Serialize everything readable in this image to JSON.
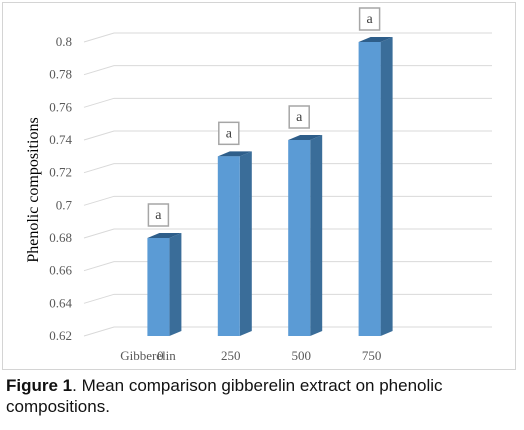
{
  "chart_data": {
    "type": "bar",
    "categories": [
      "0",
      "250",
      "500",
      "750"
    ],
    "x_axis_name": "Gibberelin",
    "values": [
      0.68,
      0.73,
      0.74,
      0.8
    ],
    "significance": [
      "a",
      "a",
      "a",
      "a"
    ],
    "ylabel": "Phenolic compositions",
    "ylim": [
      0.62,
      0.8
    ],
    "yticks": [
      "0.62",
      "0.64",
      "0.66",
      "0.68",
      "0.7",
      "0.72",
      "0.74",
      "0.76",
      "0.78",
      "0.8"
    ],
    "grid": true,
    "legend": "none",
    "colors": {
      "bar_front": "#5b9bd5",
      "bar_side": "#3a6d99",
      "bar_top": "#2e5e8a",
      "grid": "#d9d9d9"
    }
  },
  "caption": {
    "label": "Figure 1",
    "text": ". Mean comparison gibberelin extract on phenolic compositions."
  }
}
